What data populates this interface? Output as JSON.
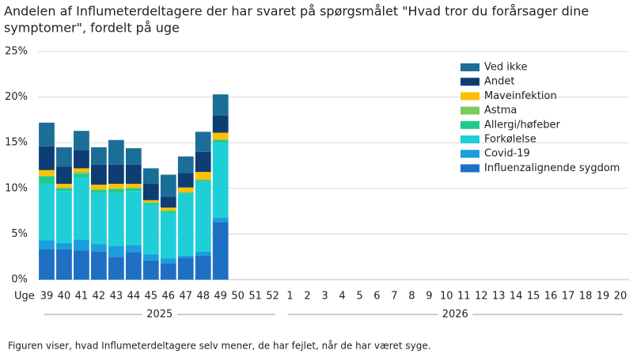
{
  "chart_data": {
    "type": "stacked_bar",
    "title": "Andelen af Influmeterdeltagere der har svaret på spørgsmålet \"Hvad tror du forårsager dine",
    "title_line2": "symptomer\", fordelt på uge",
    "x_label": "Uge",
    "years": [
      "2025",
      "2026"
    ],
    "categories": [
      "39",
      "40",
      "41",
      "42",
      "43",
      "44",
      "45",
      "46",
      "47",
      "48",
      "49",
      "50",
      "51",
      "52",
      "1",
      "2",
      "3",
      "4",
      "5",
      "6",
      "7",
      "8",
      "9",
      "10",
      "11",
      "12",
      "13",
      "14",
      "15",
      "16",
      "17",
      "18",
      "19",
      "20"
    ],
    "series": [
      {
        "name": "Influenzalignende sygdom",
        "color": "#1f6fc5",
        "values": [
          3.3,
          3.3,
          3.2,
          3.1,
          2.5,
          3.0,
          2.1,
          1.8,
          2.4,
          2.6,
          6.3,
          null,
          null,
          null,
          null,
          null,
          null,
          null,
          null,
          null,
          null,
          null,
          null,
          null,
          null,
          null,
          null,
          null,
          null,
          null,
          null,
          null,
          null,
          null
        ]
      },
      {
        "name": "Covid-19",
        "color": "#199fdb",
        "values": [
          1.0,
          0.7,
          1.2,
          0.8,
          1.2,
          0.8,
          0.7,
          0.5,
          0.2,
          0.5,
          0.5,
          null,
          null,
          null,
          null,
          null,
          null,
          null,
          null,
          null,
          null,
          null,
          null,
          null,
          null,
          null,
          null,
          null,
          null,
          null,
          null,
          null,
          null,
          null
        ]
      },
      {
        "name": "Forkølelse",
        "color": "#1ecfd8",
        "values": [
          6.2,
          5.7,
          6.8,
          5.6,
          5.8,
          5.9,
          5.4,
          5.0,
          6.8,
          7.6,
          8.2,
          null,
          null,
          null,
          null,
          null,
          null,
          null,
          null,
          null,
          null,
          null,
          null,
          null,
          null,
          null,
          null,
          null,
          null,
          null,
          null,
          null,
          null,
          null
        ]
      },
      {
        "name": "Allergi/høfeber",
        "color": "#22c98f",
        "values": [
          0.8,
          0.3,
          0.4,
          0.3,
          0.4,
          0.3,
          0.2,
          0.2,
          0.1,
          0.2,
          0.3,
          null,
          null,
          null,
          null,
          null,
          null,
          null,
          null,
          null,
          null,
          null,
          null,
          null,
          null,
          null,
          null,
          null,
          null,
          null,
          null,
          null,
          null,
          null
        ]
      },
      {
        "name": "Astma",
        "color": "#7dcb5d",
        "values": [
          0.1,
          0.1,
          0.2,
          0.1,
          0.1,
          0.1,
          0.1,
          0.1,
          0.1,
          0.1,
          0.1,
          null,
          null,
          null,
          null,
          null,
          null,
          null,
          null,
          null,
          null,
          null,
          null,
          null,
          null,
          null,
          null,
          null,
          null,
          null,
          null,
          null,
          null,
          null
        ]
      },
      {
        "name": "Maveinfektion",
        "color": "#ffc000",
        "values": [
          0.6,
          0.4,
          0.4,
          0.5,
          0.5,
          0.4,
          0.2,
          0.3,
          0.5,
          0.8,
          0.7,
          null,
          null,
          null,
          null,
          null,
          null,
          null,
          null,
          null,
          null,
          null,
          null,
          null,
          null,
          null,
          null,
          null,
          null,
          null,
          null,
          null,
          null,
          null
        ]
      },
      {
        "name": "Andet",
        "color": "#0d3d73",
        "values": [
          2.6,
          1.9,
          2.0,
          2.2,
          2.1,
          2.1,
          1.8,
          1.2,
          1.6,
          2.2,
          1.9,
          null,
          null,
          null,
          null,
          null,
          null,
          null,
          null,
          null,
          null,
          null,
          null,
          null,
          null,
          null,
          null,
          null,
          null,
          null,
          null,
          null,
          null,
          null
        ]
      },
      {
        "name": "Ved ikke",
        "color": "#1a6e98",
        "values": [
          2.6,
          2.1,
          2.1,
          1.9,
          2.7,
          1.8,
          1.7,
          2.4,
          1.8,
          2.2,
          2.3,
          null,
          null,
          null,
          null,
          null,
          null,
          null,
          null,
          null,
          null,
          null,
          null,
          null,
          null,
          null,
          null,
          null,
          null,
          null,
          null,
          null,
          null,
          null
        ]
      }
    ],
    "ylim": [
      0,
      25
    ],
    "yticks": [
      {
        "value": 0,
        "label": "0%"
      },
      {
        "value": 5,
        "label": "5%"
      },
      {
        "value": 10,
        "label": "10%"
      },
      {
        "value": 15,
        "label": "15%"
      },
      {
        "value": 20,
        "label": "20%"
      },
      {
        "value": 25,
        "label": "25%"
      }
    ],
    "grid": true,
    "legend": "upper right",
    "footnote": "Figuren viser, hvad Influmeterdeltagere selv mener, de har fejlet, når de har været syge."
  }
}
